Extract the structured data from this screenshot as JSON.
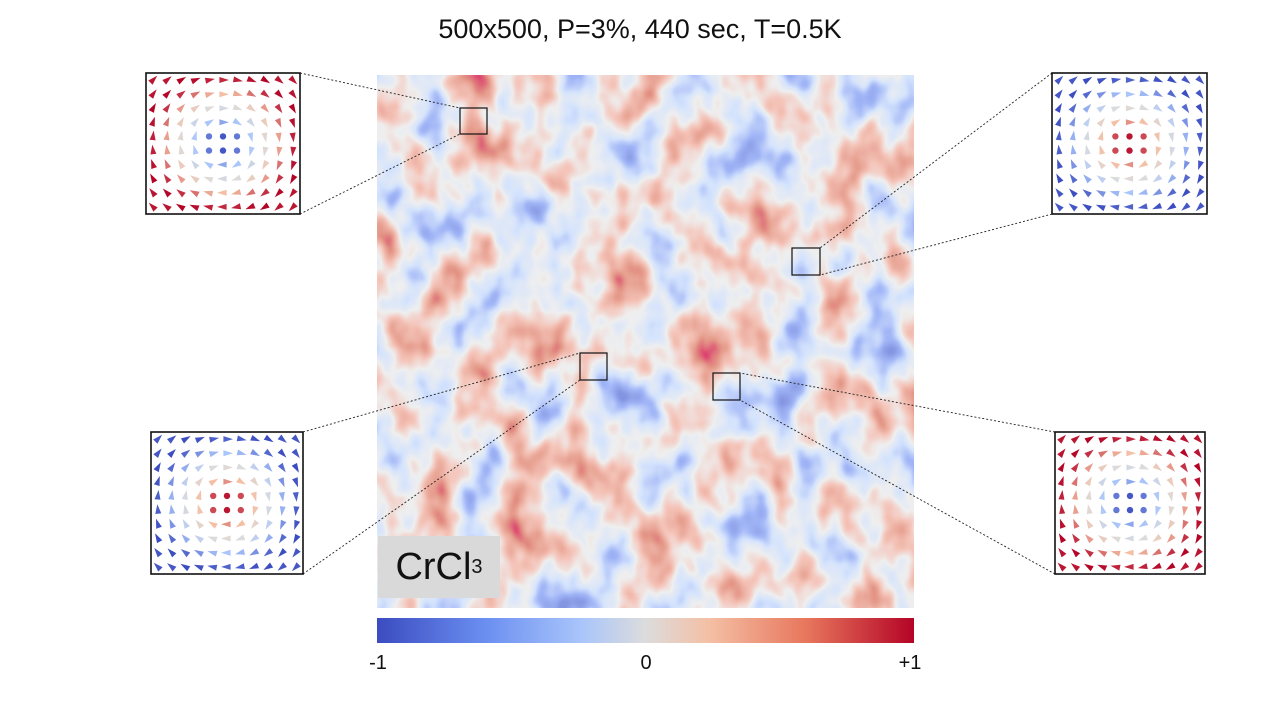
{
  "title": "500x500, P=3%, 440 sec, T=0.5K",
  "material_label": {
    "main": "CrCl",
    "subscript": "3"
  },
  "colorbar": {
    "min_label": "-1",
    "mid_label": "0",
    "max_label": "+1",
    "colors": [
      "#3b4cc0",
      "#a9c5fb",
      "#dcdcdc",
      "#f4bfa4",
      "#b40426"
    ]
  },
  "insets": [
    {
      "name": "top-left",
      "core_polarity": -1
    },
    {
      "name": "top-right",
      "core_polarity": 1
    },
    {
      "name": "bottom-left",
      "core_polarity": 1
    },
    {
      "name": "bottom-right",
      "core_polarity": -1
    }
  ]
}
